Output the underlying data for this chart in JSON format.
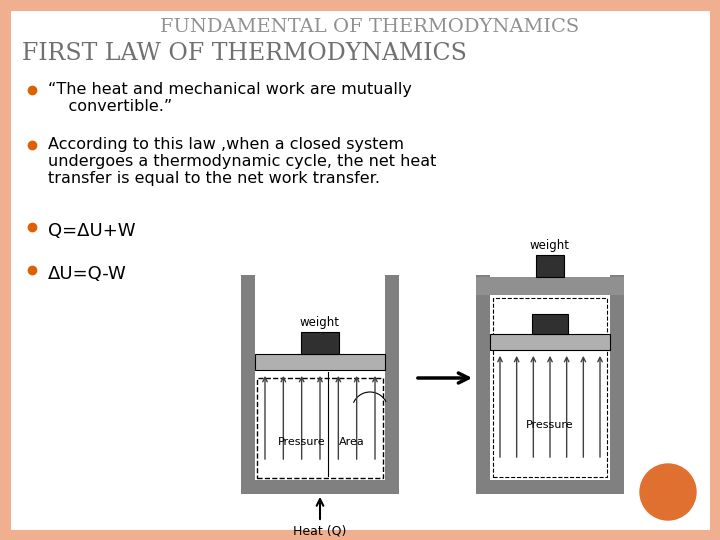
{
  "bg_color": "#ffffff",
  "border_color": "#f0b090",
  "title": "FUNDAMENTAL OF THERMODYNAMICS",
  "subtitle": "FIRST LAW OF THERMODYNAMICS",
  "bullet1_line1": "“The heat and mechanical work are mutually",
  "bullet1_line2": "    convertible.”",
  "bullet2_line1": "According to this law ,when a closed system",
  "bullet2_line2": "undergoes a thermodynamic cycle, the net heat",
  "bullet2_line3": "transfer is equal to the net work transfer.",
  "eq1": "Q=ΔU+W",
  "eq2": "ΔU=Q-W",
  "title_color": "#909090",
  "subtitle_color": "#707070",
  "bullet_color": "#000000",
  "eq_color": "#000000",
  "bullet_dot_color": "#e06000",
  "orange_circle_color": "#e07030",
  "arrow_color": "#333333",
  "wall_color": "#808080",
  "piston_color": "#a0a0a0",
  "weight_color": "#303030",
  "inner_arrow_color": "#404040"
}
